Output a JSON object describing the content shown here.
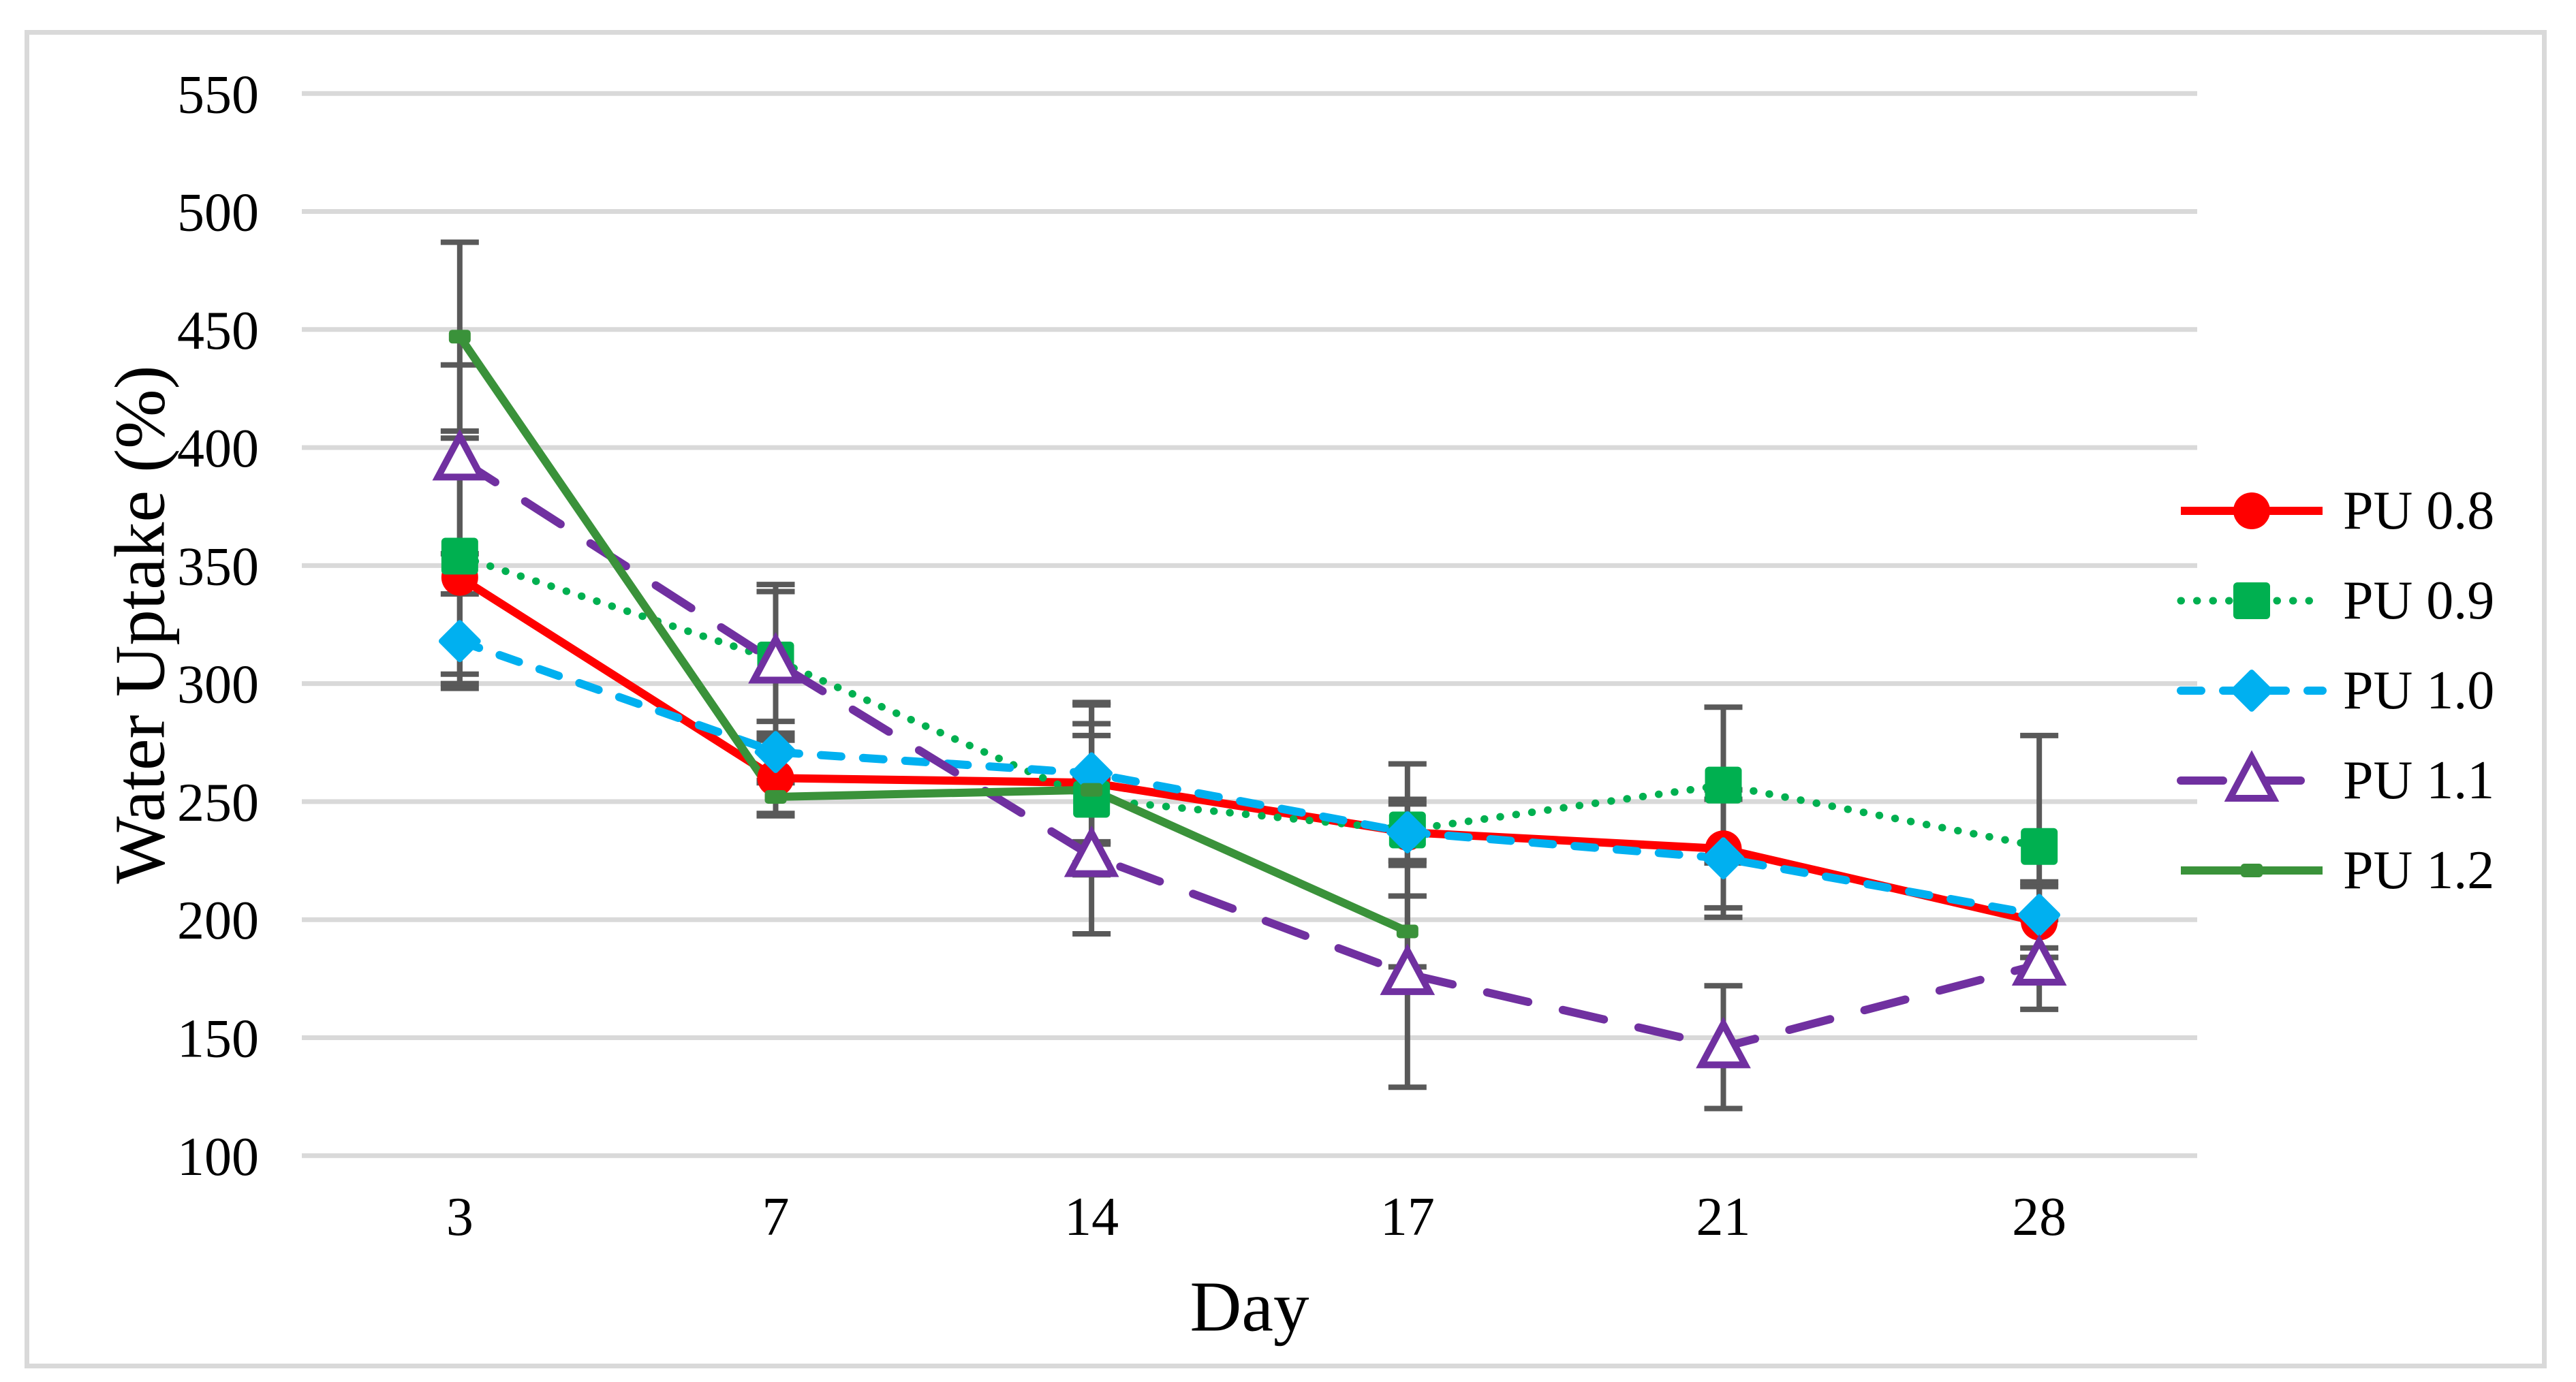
{
  "figure": {
    "background": "#FFFFFF",
    "border_color": "#D9D9D9"
  },
  "chart_data": {
    "type": "line",
    "title": "",
    "xlabel": "Day",
    "ylabel": "Water Uptake (%)",
    "categories": [
      "3",
      "7",
      "14",
      "17",
      "21",
      "28"
    ],
    "y_axis": {
      "min": 100,
      "max": 550,
      "step": 50,
      "tick_labels": [
        "100",
        "150",
        "200",
        "250",
        "300",
        "350",
        "400",
        "450",
        "500",
        "550"
      ]
    },
    "grid": true,
    "gridline_color": "#D9D9D9",
    "error_bar_color": "#595959",
    "legend_position": "right",
    "series": [
      {
        "name": "PU 0.8",
        "color": "#FF0000",
        "line_style": "solid",
        "marker": "circle",
        "values": [
          345,
          260,
          258,
          237,
          230,
          199
        ],
        "error": [
          45,
          16,
          25,
          14,
          25,
          15
        ]
      },
      {
        "name": "PU 0.9",
        "color": "#00B050",
        "line_style": "dotted",
        "marker": "square",
        "values": [
          354,
          310,
          251,
          238,
          257,
          231
        ],
        "error": [
          50,
          32,
          27,
          28,
          33,
          47
        ]
      },
      {
        "name": "PU 1.0",
        "color": "#00B0F0",
        "line_style": "dashed",
        "marker": "diamond",
        "values": [
          318,
          271,
          262,
          237,
          226,
          202
        ],
        "error": [
          20,
          13,
          30,
          12,
          25,
          14
        ]
      },
      {
        "name": "PU 1.1",
        "color": "#7030A0",
        "line_style": "long-dash",
        "marker": "triangle-open",
        "values": [
          395,
          309,
          227,
          177,
          146,
          181
        ],
        "error": [
          40,
          30,
          33,
          48,
          26,
          19
        ]
      },
      {
        "name": "PU 1.2",
        "color": "#3A923A",
        "line_style": "solid",
        "marker": "small-square",
        "values": [
          447,
          252,
          255,
          195,
          null,
          null
        ],
        "error": [
          40,
          7,
          36,
          15,
          null,
          null
        ]
      }
    ]
  }
}
